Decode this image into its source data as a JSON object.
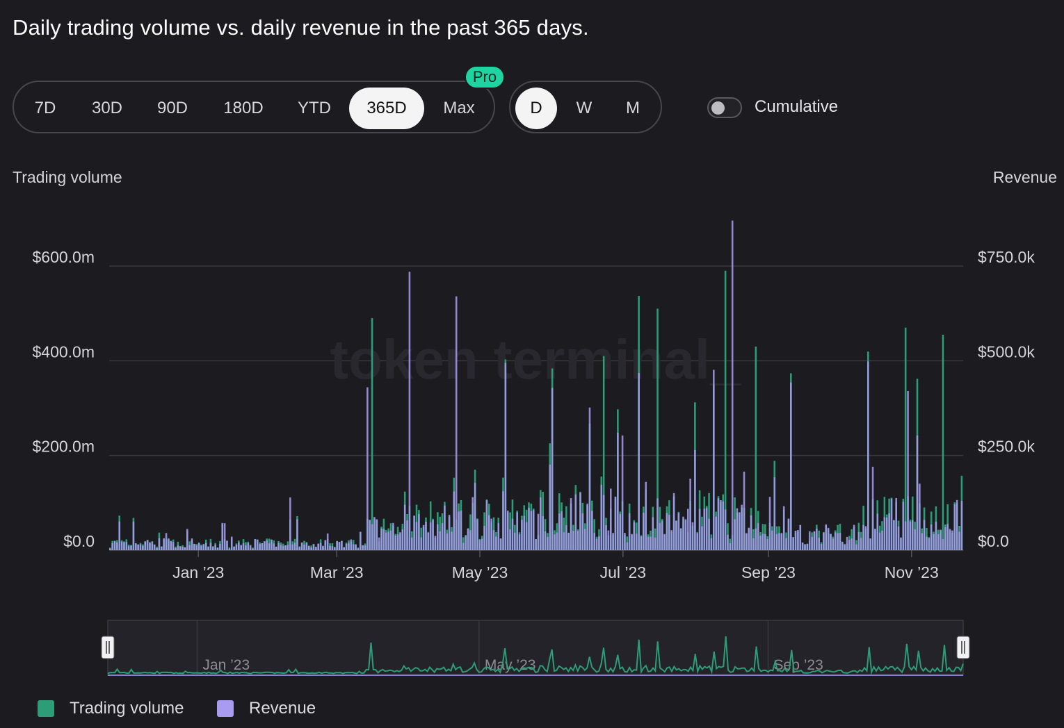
{
  "title": "Daily trading volume vs. daily revenue in the past 365 days.",
  "range_buttons": [
    {
      "label": "7D",
      "active": false
    },
    {
      "label": "30D",
      "active": false
    },
    {
      "label": "90D",
      "active": false
    },
    {
      "label": "180D",
      "active": false
    },
    {
      "label": "YTD",
      "active": false
    },
    {
      "label": "365D",
      "active": true
    },
    {
      "label": "Max",
      "active": false
    }
  ],
  "pro_badge": "Pro",
  "granularity_buttons": [
    {
      "label": "D",
      "active": true
    },
    {
      "label": "W",
      "active": false
    },
    {
      "label": "M",
      "active": false
    }
  ],
  "cumulative": {
    "label": "Cumulative",
    "enabled": false
  },
  "watermark": "token terminal_",
  "colors": {
    "background": "#1c1b20",
    "trading_volume": "#2d9d78",
    "revenue": "#a99cf0",
    "grid": "#3a393f",
    "accent_pro": "#1fd4a0"
  },
  "chart_data": {
    "type": "bar",
    "left_axis_title": "Trading volume",
    "right_axis_title": "Revenue",
    "y_left_ticks": [
      "$0.0",
      "$200.0m",
      "$400.0m",
      "$600.0m"
    ],
    "y_right_ticks": [
      "$0.0",
      "$250.0k",
      "$500.0k",
      "$750.0k"
    ],
    "ylim_left": [
      0,
      600000000
    ],
    "ylim_right": [
      0,
      750000
    ],
    "x_range": [
      "2022-11-24",
      "2023-11-23"
    ],
    "x_ticks": [
      "Jan ’23",
      "Mar ’23",
      "May ’23",
      "Jul ’23",
      "Sep ’23",
      "Nov ’23"
    ],
    "grid": true,
    "series": [
      {
        "name": "Trading volume",
        "color": "#2d9d78"
      },
      {
        "name": "Revenue",
        "color": "#a99cf0"
      }
    ],
    "trading_volume_peaks": [
      {
        "date": "2023-03-16",
        "value": 490000000
      },
      {
        "date": "2023-06-23",
        "value": 410000000
      },
      {
        "date": "2023-07-16",
        "value": 510000000
      },
      {
        "date": "2023-08-14",
        "value": 590000000
      },
      {
        "date": "2023-08-27",
        "value": 430000000
      },
      {
        "date": "2023-10-30",
        "value": 470000000
      },
      {
        "date": "2023-11-15",
        "value": 455000000
      }
    ],
    "revenue_peaks": [
      {
        "date": "2023-03-14",
        "value": 430000
      },
      {
        "date": "2023-04-01",
        "value": 735000
      },
      {
        "date": "2023-04-21",
        "value": 670000
      },
      {
        "date": "2023-08-17",
        "value": 870000
      },
      {
        "date": "2023-10-31",
        "value": 420000
      }
    ]
  },
  "navigator": {
    "labels": [
      "Jan ’23",
      "May ’23",
      "Sep ’23"
    ]
  },
  "legend": [
    {
      "label": "Trading volume",
      "color": "#2d9d78"
    },
    {
      "label": "Revenue",
      "color": "#a99cf0"
    }
  ]
}
